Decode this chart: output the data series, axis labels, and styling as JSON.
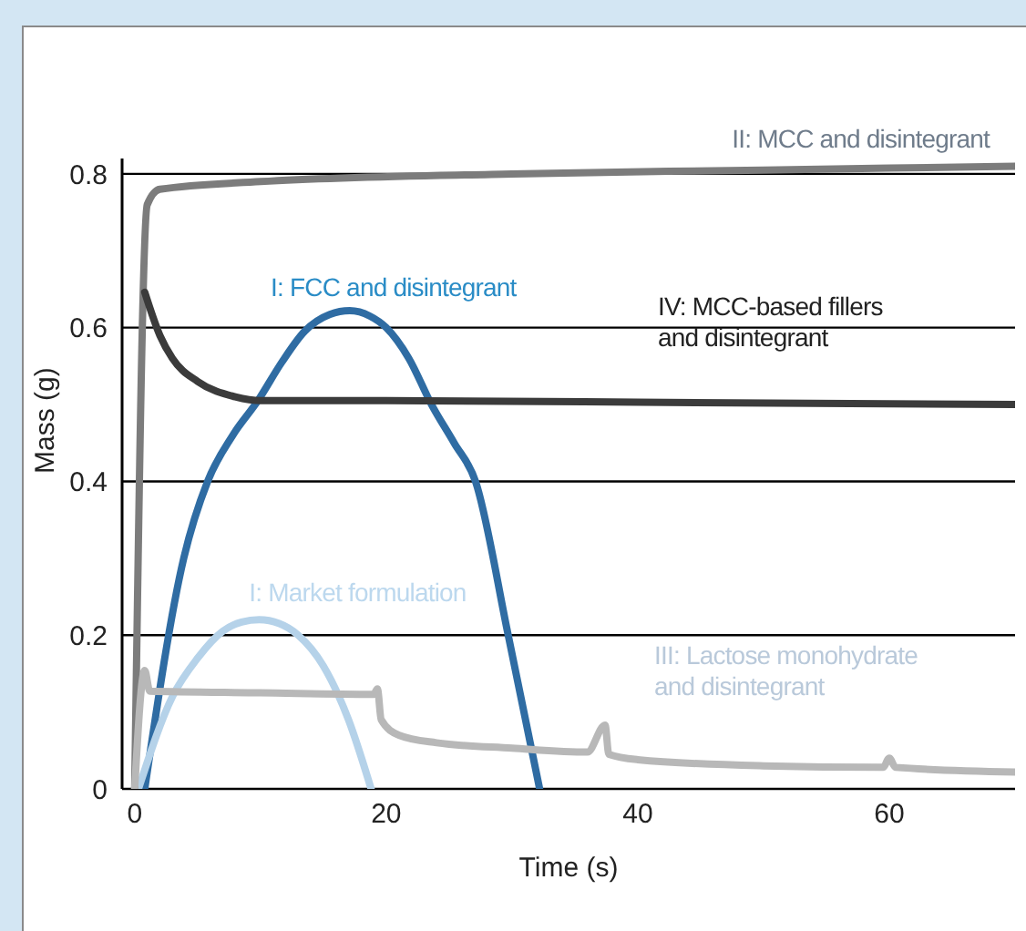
{
  "chart_data": {
    "type": "line",
    "xlabel": "Time (s)",
    "ylabel": "Mass (g)",
    "xlim": [
      -1,
      70
    ],
    "xticks": [
      0,
      20,
      40,
      60
    ],
    "ylim": [
      0,
      0.82
    ],
    "yticks": [
      0,
      0.2,
      0.4,
      0.6,
      0.8
    ],
    "grid": "y",
    "legend": false,
    "marker": "none",
    "line_style": "solid",
    "series": [
      {
        "name": "I: FCC and disintegrant",
        "color": "#2f6ca3",
        "x": [
          0.8,
          3.9,
          5.8,
          7.8,
          9.8,
          11.7,
          13.5,
          15.5,
          17.1,
          18.7,
          20,
          21.8,
          23.6,
          25.4,
          27.1,
          29.7,
          32.2
        ],
        "values": [
          0,
          0.3,
          0.4,
          0.46,
          0.505,
          0.555,
          0.595,
          0.617,
          0.622,
          0.615,
          0.6,
          0.56,
          0.5,
          0.45,
          0.4,
          0.2,
          0
        ]
      },
      {
        "name": "I: Market formulation",
        "color": "#b5d2e9",
        "x": [
          0.3,
          3,
          5,
          7,
          8.5,
          9.9,
          11.5,
          13,
          15,
          17,
          18.8
        ],
        "values": [
          0,
          0.12,
          0.17,
          0.205,
          0.217,
          0.22,
          0.215,
          0.2,
          0.16,
          0.09,
          0
        ]
      },
      {
        "name": "II: MCC and disintegrant",
        "color": "#7c7c7c",
        "x": [
          0,
          1,
          2,
          10,
          30,
          50,
          70
        ],
        "values": [
          0,
          0.76,
          0.78,
          0.79,
          0.8,
          0.805,
          0.81
        ]
      },
      {
        "name": "III: Lactose monohydrate and disintegrant",
        "color": "#b8b8b8",
        "x": [
          0,
          0.8,
          1.2,
          10,
          19,
          19.3,
          19.6,
          21,
          24,
          30,
          36,
          37.4,
          37.7,
          40,
          50,
          59.5,
          60,
          60.5,
          70
        ],
        "values": [
          0,
          0.154,
          0.127,
          0.125,
          0.123,
          0.13,
          0.09,
          0.07,
          0.06,
          0.053,
          0.048,
          0.083,
          0.045,
          0.038,
          0.03,
          0.028,
          0.04,
          0.028,
          0.022
        ]
      },
      {
        "name": "IV: MCC-based fillers and disintegrant",
        "color": "#3b3b3b",
        "x": [
          0.8,
          2,
          3,
          5,
          8,
          10,
          20,
          40,
          70
        ],
        "values": [
          0.646,
          0.59,
          0.56,
          0.53,
          0.51,
          0.505,
          0.505,
          0.503,
          0.5
        ]
      }
    ]
  }
}
